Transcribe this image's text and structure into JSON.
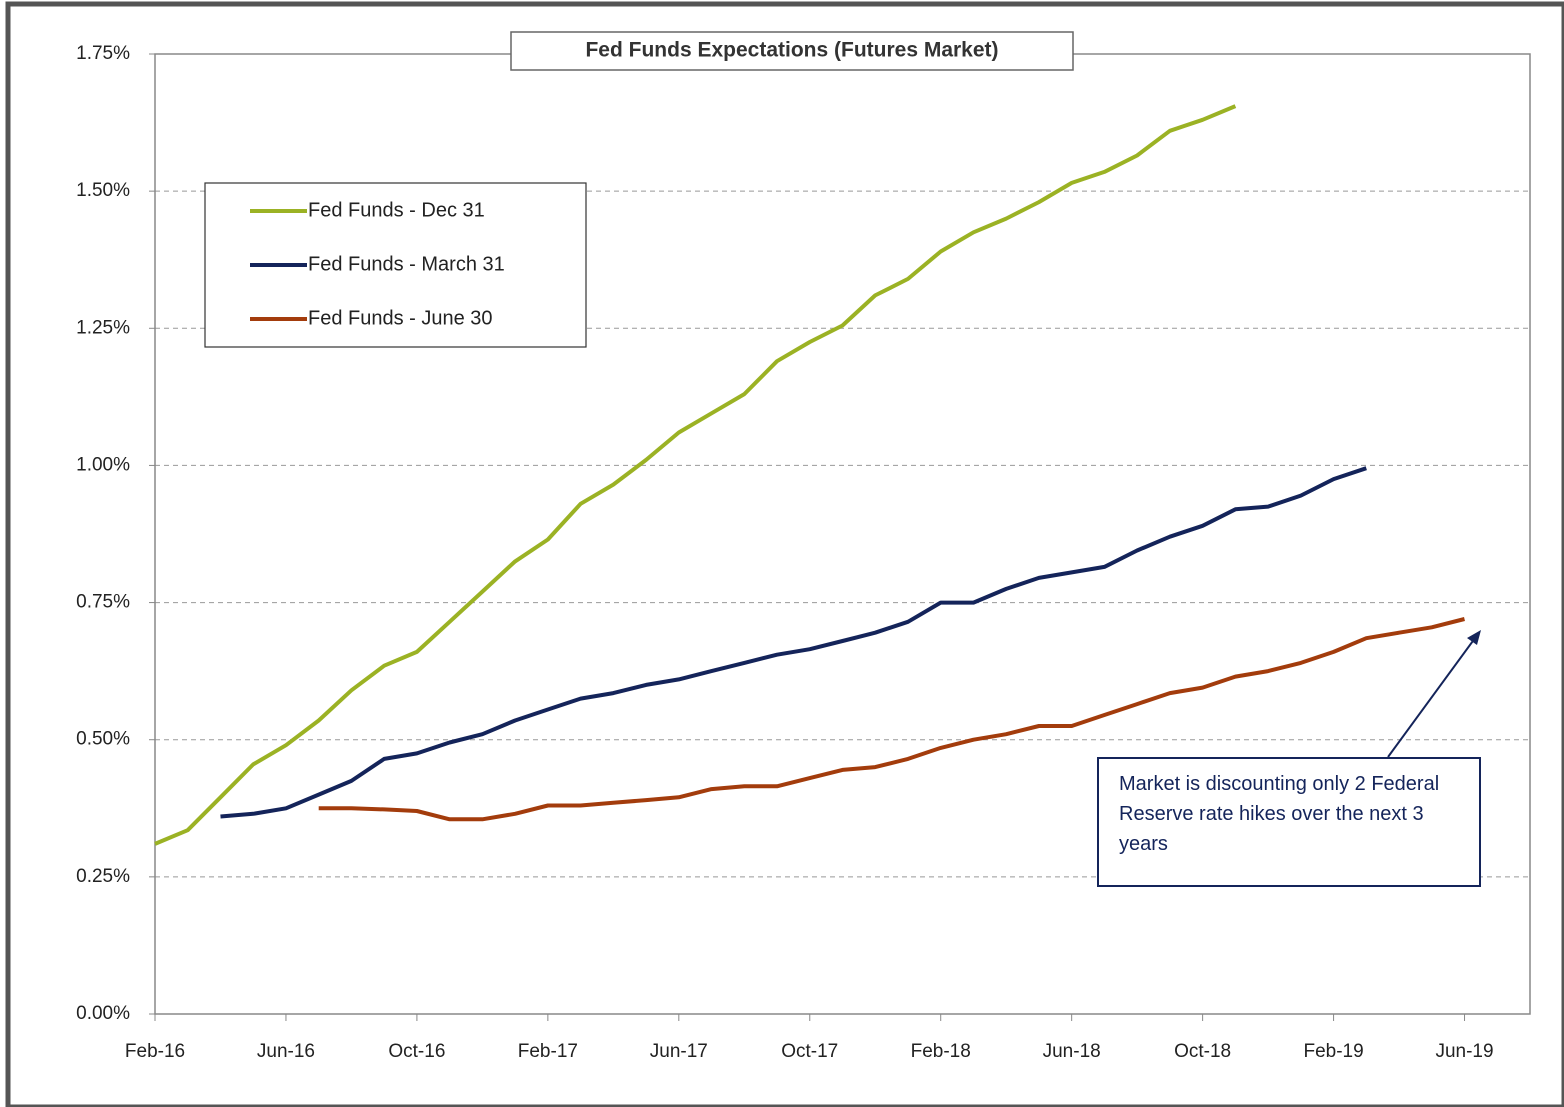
{
  "chart_data": {
    "type": "line",
    "title": "Fed Funds Expectations (Futures Market)",
    "x": [
      "2016-02",
      "2016-03",
      "2016-04",
      "2016-05",
      "2016-06",
      "2016-07",
      "2016-08",
      "2016-09",
      "2016-10",
      "2016-11",
      "2016-12",
      "2017-01",
      "2017-02",
      "2017-03",
      "2017-04",
      "2017-05",
      "2017-06",
      "2017-07",
      "2017-08",
      "2017-09",
      "2017-10",
      "2017-11",
      "2017-12",
      "2018-01",
      "2018-02",
      "2018-03",
      "2018-04",
      "2018-05",
      "2018-06",
      "2018-07",
      "2018-08",
      "2018-09",
      "2018-10",
      "2018-11",
      "2018-12",
      "2019-01",
      "2019-02",
      "2019-03",
      "2019-04",
      "2019-05",
      "2019-06"
    ],
    "series": [
      {
        "name": "Fed Funds - Dec 31",
        "color": "#9bb224",
        "values": [
          0.31,
          0.335,
          0.395,
          0.455,
          0.49,
          0.535,
          0.59,
          0.635,
          0.66,
          0.715,
          0.77,
          0.825,
          0.865,
          0.93,
          0.965,
          1.01,
          1.06,
          1.095,
          1.13,
          1.19,
          1.225,
          1.255,
          1.31,
          1.34,
          1.39,
          1.425,
          1.45,
          1.48,
          1.515,
          1.535,
          1.565,
          1.61,
          1.63,
          1.655,
          null,
          null,
          null,
          null,
          null,
          null,
          null
        ]
      },
      {
        "name": "Fed Funds - March 31",
        "color": "#14245a",
        "values": [
          null,
          null,
          0.36,
          0.365,
          0.375,
          0.4,
          0.425,
          0.465,
          0.475,
          0.495,
          0.51,
          0.535,
          0.555,
          0.575,
          0.585,
          0.6,
          0.61,
          0.625,
          0.64,
          0.655,
          0.665,
          0.68,
          0.695,
          0.715,
          0.75,
          0.75,
          0.775,
          0.795,
          0.805,
          0.815,
          0.845,
          0.87,
          0.89,
          0.92,
          0.925,
          0.945,
          0.975,
          0.995,
          null,
          null,
          null
        ]
      },
      {
        "name": "Fed Funds - June 30",
        "color": "#a33c0c",
        "values": [
          null,
          null,
          null,
          null,
          null,
          0.375,
          0.375,
          0.373,
          0.37,
          0.355,
          0.355,
          0.365,
          0.38,
          0.38,
          0.385,
          0.39,
          0.395,
          0.41,
          0.415,
          0.415,
          0.43,
          0.445,
          0.45,
          0.465,
          0.485,
          0.5,
          0.51,
          0.525,
          0.525,
          0.545,
          0.565,
          0.585,
          0.595,
          0.615,
          0.625,
          0.64,
          0.66,
          0.685,
          0.695,
          0.705,
          0.72
        ]
      }
    ],
    "xlim": [
      "2016-02",
      "2019-08"
    ],
    "xticks": [
      {
        "value": "2016-02",
        "label": "Feb-16"
      },
      {
        "value": "2016-06",
        "label": "Jun-16"
      },
      {
        "value": "2016-10",
        "label": "Oct-16"
      },
      {
        "value": "2017-02",
        "label": "Feb-17"
      },
      {
        "value": "2017-06",
        "label": "Jun-17"
      },
      {
        "value": "2017-10",
        "label": "Oct-17"
      },
      {
        "value": "2018-02",
        "label": "Feb-18"
      },
      {
        "value": "2018-06",
        "label": "Jun-18"
      },
      {
        "value": "2018-10",
        "label": "Oct-18"
      },
      {
        "value": "2019-02",
        "label": "Feb-19"
      },
      {
        "value": "2019-06",
        "label": "Jun-19"
      }
    ],
    "ylim": [
      0,
      1.75
    ],
    "yticks": [
      {
        "value": 0,
        "label": "0.00%"
      },
      {
        "value": 0.25,
        "label": "0.25%"
      },
      {
        "value": 0.5,
        "label": "0.50%"
      },
      {
        "value": 0.75,
        "label": "0.75%"
      },
      {
        "value": 1,
        "label": "1.00%"
      },
      {
        "value": 1.25,
        "label": "1.25%"
      },
      {
        "value": 1.5,
        "label": "1.50%"
      },
      {
        "value": 1.75,
        "label": "1.75%"
      }
    ],
    "grid": true,
    "annotation": "Market is discounting only 2 Federal Reserve rate hikes over the next 3 years"
  }
}
